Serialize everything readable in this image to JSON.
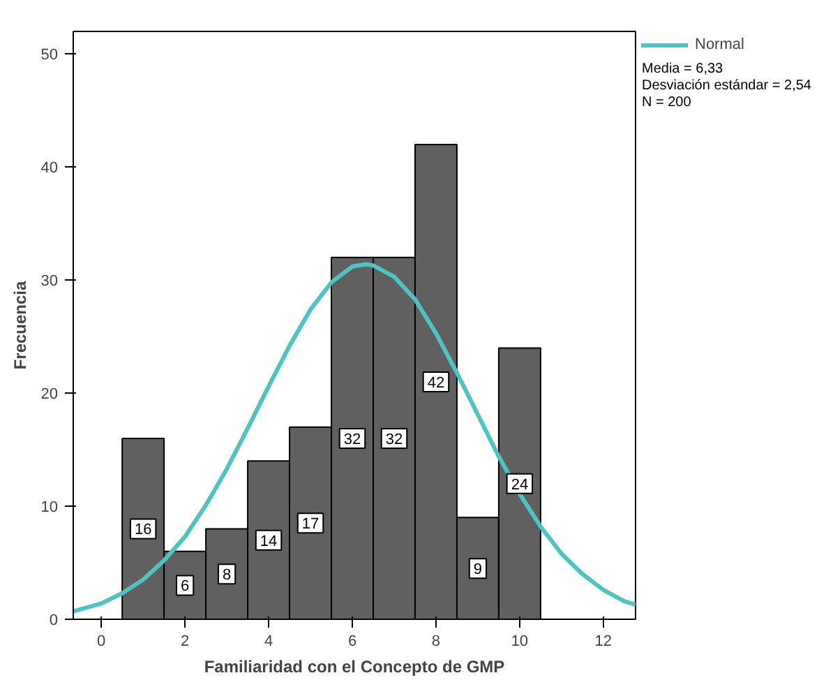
{
  "chart_data": {
    "type": "histogram",
    "xlabel": "Familiaridad con el Concepto de GMP",
    "ylabel": "Frecuencia",
    "bins": [
      0.5,
      1.5,
      2.5,
      3.5,
      4.5,
      5.5,
      6.5,
      7.5,
      8.5,
      9.5,
      10.5
    ],
    "values": [
      16,
      6,
      8,
      14,
      17,
      32,
      32,
      42,
      9,
      24
    ],
    "value_labels": [
      "16",
      "6",
      "8",
      "14",
      "17",
      "32",
      "32",
      "42",
      "9",
      "24"
    ],
    "color": "#606060",
    "series": [
      {
        "name": "Normal",
        "type": "line",
        "color": "#4dc3c3",
        "x": [
          -0.67,
          0,
          0.5,
          1,
          1.5,
          2,
          2.5,
          3,
          3.5,
          4,
          4.5,
          5,
          5.5,
          6,
          6.33,
          6.5,
          7,
          7.5,
          8,
          8.5,
          9,
          9.5,
          10,
          10.5,
          11,
          11.5,
          12,
          12.5,
          12.77
        ],
        "values": [
          0.7,
          1.4,
          2.3,
          3.5,
          5.2,
          7.3,
          10.1,
          13.3,
          16.9,
          20.6,
          24.2,
          27.4,
          29.8,
          31.2,
          31.4,
          31.3,
          30.3,
          28.3,
          25.3,
          21.8,
          18.1,
          14.4,
          11.1,
          8.2,
          5.8,
          4.0,
          2.6,
          1.6,
          1.3
        ]
      }
    ],
    "annotations": [
      "Media = 6,33",
      "Desviación estándar = 2,54",
      "N = 200"
    ],
    "xlim": [
      -0.67,
      12.77
    ],
    "ylim": [
      0,
      52
    ],
    "xticks": [
      0,
      2,
      4,
      6,
      8,
      10,
      12
    ],
    "yticks": [
      0,
      10,
      20,
      30,
      40,
      50
    ],
    "grid": false,
    "legend": "top right"
  }
}
